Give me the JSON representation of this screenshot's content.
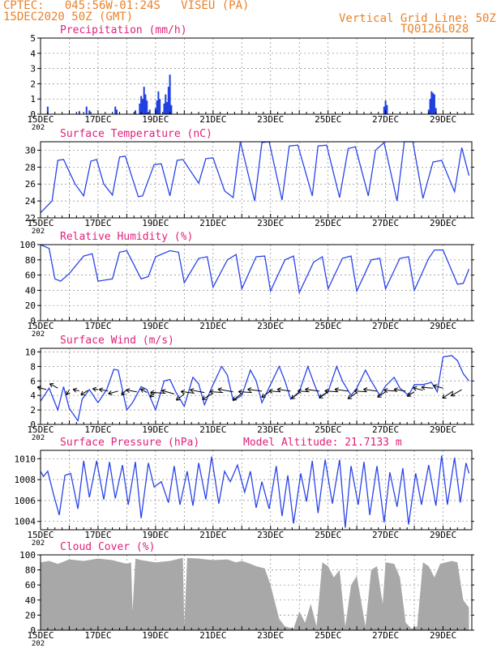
{
  "header": {
    "line1": "CPTEC:   045:56W-01:24S   VISEU (PA)",
    "line2": "15DEC2020 50Z (GMT)",
    "grid_note": "Vertical Grid Line: 50Z",
    "code": "TQ0126L028",
    "model_altitude": "Model Altitude: 21.7133 m"
  },
  "colors": {
    "header": "#e8822a",
    "title": "#e0207a",
    "line": "#2a44e8",
    "bar": "#1f3fe0",
    "cloud": "#a8a8a8"
  },
  "date_labels": [
    "15DEC",
    "17DEC",
    "19DEC",
    "21DEC",
    "23DEC",
    "25DEC",
    "27DEC",
    "29DEC"
  ],
  "year_fragment": "202",
  "chart_data": [
    {
      "type": "bar",
      "title": "Precipitation (mm/h)",
      "ylim": [
        0,
        5
      ],
      "yticks": [
        0,
        1,
        2,
        3,
        4,
        5
      ],
      "x_unit": "days since 15DEC",
      "values": [
        [
          0.25,
          0.5
        ],
        [
          1.35,
          0.2
        ],
        [
          1.6,
          0.5
        ],
        [
          1.7,
          0.25
        ],
        [
          2.6,
          0.5
        ],
        [
          2.65,
          0.3
        ],
        [
          3.3,
          0.25
        ],
        [
          3.45,
          0.7
        ],
        [
          3.5,
          1.2
        ],
        [
          3.55,
          1.0
        ],
        [
          3.6,
          1.8
        ],
        [
          3.65,
          1.3
        ],
        [
          3.7,
          0.9
        ],
        [
          3.8,
          0.3
        ],
        [
          4.0,
          0.4
        ],
        [
          4.05,
          0.9
        ],
        [
          4.1,
          1.5
        ],
        [
          4.15,
          1.0
        ],
        [
          4.3,
          0.7
        ],
        [
          4.35,
          1.3
        ],
        [
          4.4,
          0.8
        ],
        [
          4.45,
          1.8
        ],
        [
          4.5,
          2.6
        ],
        [
          4.55,
          0.6
        ],
        [
          11.95,
          0.5
        ],
        [
          12.0,
          0.9
        ],
        [
          12.05,
          0.6
        ],
        [
          13.5,
          0.3
        ],
        [
          13.55,
          1.0
        ],
        [
          13.6,
          1.5
        ],
        [
          13.65,
          1.4
        ],
        [
          13.7,
          1.3
        ],
        [
          13.75,
          0.4
        ]
      ]
    },
    {
      "type": "line",
      "title": "Surface Temperature (nC)",
      "ylim": [
        22,
        31
      ],
      "yticks": [
        22,
        24,
        26,
        28,
        30
      ],
      "x": [
        0,
        0.4,
        0.6,
        0.8,
        1.2,
        1.5,
        1.75,
        1.95,
        2.2,
        2.5,
        2.75,
        2.95,
        3.4,
        3.55,
        3.95,
        4.2,
        4.5,
        4.75,
        4.95,
        5.5,
        5.75,
        6.0,
        6.4,
        6.7,
        6.95,
        7.45,
        7.7,
        7.95,
        8.4,
        8.65,
        8.95,
        9.45,
        9.65,
        9.95,
        10.4,
        10.7,
        10.95,
        11.4,
        11.65,
        11.95,
        12.4,
        12.65,
        12.95,
        13.3,
        13.65,
        13.95,
        14.4,
        14.65,
        14.9
      ],
      "values": [
        22.6,
        24.0,
        28.8,
        28.9,
        26.0,
        24.6,
        28.7,
        28.9,
        26.0,
        24.7,
        29.2,
        29.3,
        24.5,
        24.6,
        28.3,
        28.4,
        24.6,
        28.8,
        28.9,
        26.1,
        29.0,
        29.1,
        25.2,
        24.4,
        31.0,
        24.0,
        30.9,
        31.0,
        24.1,
        30.5,
        30.6,
        24.6,
        30.5,
        30.6,
        24.4,
        30.2,
        30.4,
        24.6,
        30.0,
        30.9,
        24.0,
        31.0,
        31.0,
        24.3,
        28.6,
        28.8,
        25.1,
        30.3,
        27.0
      ]
    },
    {
      "type": "line",
      "title": "Relative Humidity (%)",
      "ylim": [
        0,
        100
      ],
      "yticks": [
        0,
        20,
        40,
        60,
        80,
        100
      ],
      "x": [
        0,
        0.3,
        0.5,
        0.7,
        1.0,
        1.5,
        1.8,
        2.0,
        2.5,
        2.75,
        3.0,
        3.5,
        3.75,
        4.0,
        4.5,
        4.8,
        5.0,
        5.5,
        5.8,
        6.0,
        6.5,
        6.8,
        7.0,
        7.5,
        7.8,
        8.0,
        8.5,
        8.8,
        9.0,
        9.5,
        9.8,
        10.0,
        10.5,
        10.8,
        11.0,
        11.5,
        11.8,
        12.0,
        12.5,
        12.8,
        13.0,
        13.5,
        13.7,
        14.0,
        14.5,
        14.7,
        14.9
      ],
      "values": [
        100,
        95,
        55,
        52,
        62,
        85,
        88,
        52,
        55,
        90,
        92,
        55,
        58,
        84,
        92,
        90,
        50,
        82,
        84,
        44,
        80,
        87,
        42,
        84,
        85,
        39,
        80,
        85,
        37,
        77,
        84,
        42,
        82,
        85,
        39,
        80,
        82,
        42,
        82,
        84,
        40,
        82,
        93,
        93,
        48,
        49,
        68
      ]
    },
    {
      "type": "line",
      "title": "Surface Wind (m/s)",
      "ylim": [
        0,
        10.5
      ],
      "yticks": [
        0,
        2,
        4,
        6,
        8,
        10
      ],
      "x": [
        0,
        0.3,
        0.6,
        0.8,
        1.0,
        1.3,
        1.45,
        1.7,
        2.0,
        2.3,
        2.55,
        2.7,
        3.0,
        3.2,
        3.5,
        3.7,
        4.0,
        4.3,
        4.5,
        4.7,
        5.0,
        5.3,
        5.5,
        5.7,
        6.0,
        6.3,
        6.5,
        6.7,
        7.0,
        7.3,
        7.5,
        7.7,
        8.0,
        8.3,
        8.5,
        8.7,
        9.0,
        9.3,
        9.5,
        9.7,
        10.0,
        10.3,
        10.5,
        10.8,
        11.0,
        11.3,
        11.5,
        11.8,
        12.0,
        12.3,
        12.5,
        12.8,
        13.0,
        13.3,
        13.6,
        13.8,
        14.0,
        14.3,
        14.5,
        14.7,
        14.9
      ],
      "values": [
        3.2,
        5.0,
        2.0,
        5.2,
        2.2,
        0.5,
        3.5,
        4.8,
        3.0,
        4.8,
        7.6,
        7.5,
        2.0,
        3.0,
        5.2,
        4.8,
        2.0,
        6.0,
        6.2,
        4.5,
        2.5,
        6.5,
        5.6,
        2.7,
        5.5,
        8.0,
        6.8,
        3.3,
        4.0,
        7.5,
        6.0,
        3.0,
        5.5,
        8.0,
        6.0,
        3.5,
        4.5,
        8.0,
        5.8,
        3.8,
        4.5,
        8.0,
        6.0,
        4.0,
        5.0,
        7.5,
        6.0,
        4.0,
        5.3,
        6.5,
        5.0,
        4.0,
        5.5,
        5.5,
        5.8,
        4.5,
        9.3,
        9.5,
        8.8,
        7.0,
        6.0
      ]
    },
    {
      "type": "line",
      "title": "Surface Pressure (hPa)",
      "ylim": [
        1003.2,
        1010.8
      ],
      "yticks": [
        1004,
        1006,
        1008,
        1010
      ],
      "x": [
        0,
        0.1,
        0.25,
        0.45,
        0.65,
        0.85,
        1.05,
        1.3,
        1.5,
        1.7,
        1.95,
        2.2,
        2.4,
        2.6,
        2.85,
        3.05,
        3.3,
        3.5,
        3.75,
        3.95,
        4.2,
        4.45,
        4.65,
        4.85,
        5.1,
        5.3,
        5.5,
        5.75,
        5.95,
        6.2,
        6.4,
        6.6,
        6.85,
        7.1,
        7.3,
        7.5,
        7.7,
        7.95,
        8.2,
        8.4,
        8.6,
        8.8,
        9.05,
        9.25,
        9.45,
        9.65,
        9.9,
        10.15,
        10.4,
        10.6,
        10.8,
        11.05,
        11.25,
        11.45,
        11.7,
        11.95,
        12.15,
        12.4,
        12.6,
        12.8,
        13.05,
        13.25,
        13.5,
        13.75,
        13.95,
        14.15,
        14.4,
        14.6,
        14.8,
        14.9
      ],
      "values": [
        1008.8,
        1008.3,
        1008.8,
        1006.6,
        1004.6,
        1008.4,
        1008.6,
        1005.2,
        1009.8,
        1006.3,
        1009.8,
        1006.1,
        1009.7,
        1006.2,
        1009.4,
        1005.6,
        1009.7,
        1004.3,
        1009.6,
        1007.3,
        1007.8,
        1005.8,
        1009.3,
        1005.6,
        1008.8,
        1005.5,
        1009.6,
        1006.1,
        1010.2,
        1005.7,
        1008.8,
        1007.8,
        1009.4,
        1006.8,
        1008.8,
        1005.3,
        1007.8,
        1005.2,
        1009.3,
        1004.5,
        1008.4,
        1003.8,
        1008.6,
        1005.9,
        1009.8,
        1004.8,
        1009.9,
        1005.7,
        1009.9,
        1003.4,
        1009.3,
        1005.6,
        1009.7,
        1004.6,
        1009.3,
        1003.9,
        1008.7,
        1005.4,
        1009.1,
        1003.7,
        1008.6,
        1005.6,
        1009.4,
        1005.5,
        1010.3,
        1005.6,
        1010.1,
        1005.8,
        1009.6,
        1008.6
      ]
    },
    {
      "type": "area",
      "title": "Cloud Cover (%)",
      "ylim": [
        0,
        100
      ],
      "yticks": [
        0,
        20,
        40,
        60,
        80,
        100
      ],
      "x": [
        0,
        0.3,
        0.6,
        1.0,
        1.5,
        2.0,
        2.5,
        3.0,
        3.15,
        3.2,
        3.3,
        3.5,
        4.0,
        4.5,
        4.95,
        5.0,
        5.1,
        5.5,
        6.0,
        6.5,
        6.8,
        7.0,
        7.3,
        7.5,
        7.8,
        8.0,
        8.2,
        8.3,
        8.5,
        8.8,
        9.0,
        9.2,
        9.4,
        9.6,
        9.8,
        10.0,
        10.2,
        10.4,
        10.6,
        10.8,
        11.0,
        11.3,
        11.5,
        11.7,
        11.9,
        12.0,
        12.3,
        12.5,
        12.7,
        12.9,
        13.1,
        13.3,
        13.5,
        13.7,
        13.9,
        14.1,
        14.3,
        14.5,
        14.7,
        14.9
      ],
      "values": [
        90,
        92,
        88,
        94,
        92,
        95,
        93,
        88,
        90,
        25,
        95,
        93,
        90,
        92,
        96,
        5,
        96,
        95,
        93,
        94,
        90,
        92,
        88,
        85,
        82,
        60,
        30,
        15,
        5,
        2,
        25,
        10,
        35,
        5,
        90,
        85,
        70,
        80,
        5,
        60,
        72,
        5,
        80,
        85,
        35,
        90,
        88,
        70,
        10,
        2,
        5,
        90,
        85,
        70,
        88,
        90,
        92,
        90,
        40,
        30
      ]
    },
    {
      "type": "vector",
      "title": "Surface Wind (m/s)",
      "note": "wind arrows",
      "x": [
        0.2,
        0.6,
        1.0,
        1.35,
        1.65,
        2.0,
        2.35,
        2.7,
        3.0,
        3.35,
        3.7,
        4.0,
        4.35,
        4.65,
        5.0,
        5.35,
        5.7,
        6.0,
        6.35,
        6.7,
        7.0,
        7.35,
        7.7,
        8.0,
        8.35,
        8.7,
        9.0,
        9.35,
        9.7,
        10.0,
        10.35,
        10.7,
        11.0,
        11.35,
        11.7,
        12.0,
        12.35,
        12.7,
        13.0,
        13.3,
        13.65,
        14.0,
        14.35,
        14.65
      ],
      "y": [
        4.8,
        5.0,
        4.8,
        4.6,
        4.7,
        4.8,
        4.6,
        4.6,
        4.8,
        4.5,
        4.4,
        4.5,
        4.3,
        4.2,
        4.2,
        4.3,
        4.4,
        4.3,
        4.4,
        4.5,
        4.3,
        4.4,
        4.6,
        4.6,
        4.5,
        4.6,
        4.4,
        4.5,
        4.6,
        4.5,
        4.5,
        4.6,
        4.4,
        4.5,
        4.6,
        4.5,
        4.6,
        4.6,
        4.5,
        4.7,
        5.0,
        5.0,
        4.6,
        4.8
      ],
      "u": [
        -1.0,
        -0.9,
        -0.3,
        -0.7,
        -0.8,
        -0.6,
        -1.0,
        -1.1,
        -0.6,
        -1.2,
        -0.7,
        -0.6,
        -1.7,
        -1.4,
        -0.9,
        -1.5,
        -1.6,
        -1.2,
        -1.5,
        -1.7,
        -1.0,
        -1.5,
        -1.6,
        -1.0,
        -1.3,
        -1.5,
        -0.9,
        -1.3,
        -1.6,
        -1.0,
        -1.5,
        -1.5,
        -1.0,
        -1.4,
        -1.5,
        -0.9,
        -1.3,
        -1.3,
        -0.8,
        -1.1,
        -1.3,
        -1.1,
        -1.2,
        -1.2
      ],
      "v": [
        0.3,
        0.5,
        -0.6,
        0.2,
        -0.5,
        0.1,
        0.2,
        -0.3,
        -0.6,
        0.2,
        0.4,
        -0.6,
        0.1,
        0.4,
        -0.7,
        0.2,
        0.3,
        -0.7,
        0.1,
        0.3,
        -0.8,
        0.1,
        0.2,
        -0.7,
        0.1,
        0.2,
        -0.7,
        0.1,
        0.2,
        -0.7,
        0.1,
        0.2,
        -0.7,
        0.1,
        0.2,
        -0.6,
        0.1,
        0.2,
        -0.5,
        0.3,
        0.1,
        0.3,
        -0.8,
        -0.7
      ]
    }
  ]
}
